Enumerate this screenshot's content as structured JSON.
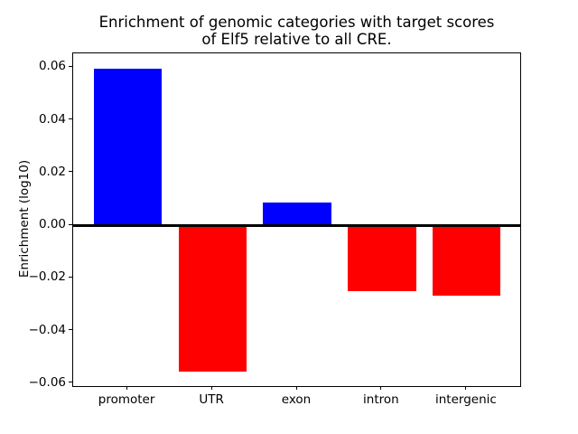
{
  "figure": {
    "background": "#ffffff"
  },
  "chart_data": {
    "type": "bar",
    "title": "Enrichment of genomic categories with target scores\nof Elf5 relative to all CRE.",
    "ylabel": "Enrichment (log10)",
    "xlabel": "",
    "categories": [
      "promoter",
      "UTR",
      "exon",
      "intron",
      "intergenic"
    ],
    "values": [
      0.0595,
      -0.0556,
      0.0085,
      -0.0249,
      -0.0268
    ],
    "bar_colors": [
      "#0000ff",
      "#ff0000",
      "#0000ff",
      "#ff0000",
      "#ff0000"
    ],
    "positive_color": "#0000ff",
    "negative_color": "#ff0000",
    "bar_width": 0.8,
    "xlim": [
      -0.64,
      4.64
    ],
    "ylim": [
      -0.0614,
      0.0653
    ],
    "yticks": [
      -0.06,
      -0.04,
      -0.02,
      0,
      0.02,
      0.04,
      0.06
    ],
    "ytick_labels": [
      "−0.06",
      "−0.04",
      "−0.02",
      "0.00",
      "0.02",
      "0.04",
      "0.06"
    ],
    "zero_line": true,
    "zero_line_color": "#000000",
    "axis_color": "#000000",
    "grid": false,
    "legend_position": "none"
  }
}
